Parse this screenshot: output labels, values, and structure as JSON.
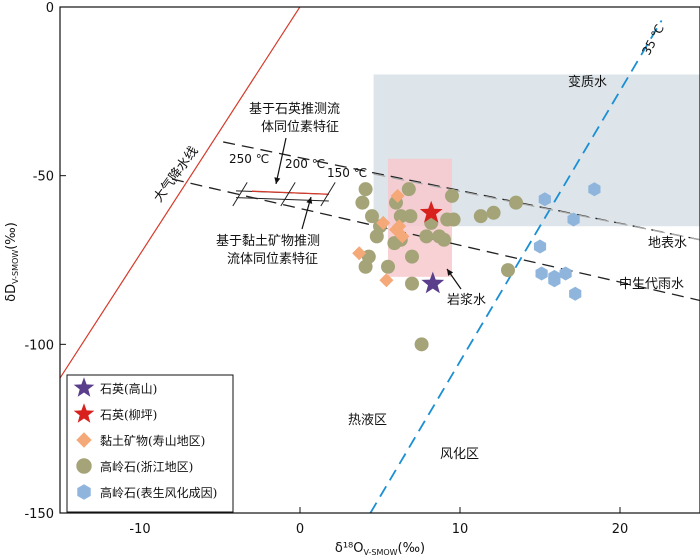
{
  "chart_data": {
    "type": "scatter",
    "xlabel": "δ¹⁸O",
    "xlabel_sub": "V-SMOW",
    "xlabel_unit": "(‰)",
    "ylabel": "δD",
    "ylabel_sub": "V-SMOW",
    "ylabel_unit": "(‰)",
    "xlim": [
      -15,
      25
    ],
    "ylim": [
      -150,
      0
    ],
    "x_ticks": [
      -10,
      0,
      10,
      20
    ],
    "y_ticks": [
      0,
      -50,
      -100,
      -150
    ],
    "series": [
      {
        "name": "石英(高山)",
        "marker": "star",
        "color": "#5a3e8c",
        "points": [
          [
            8.3,
            -82
          ]
        ]
      },
      {
        "name": "石英(柳坪)",
        "marker": "star",
        "color": "#d8201c",
        "points": [
          [
            8.2,
            -61
          ]
        ]
      },
      {
        "name": "黏土矿物(寿山地区)",
        "marker": "diamond",
        "color": "#f5a878",
        "points": [
          [
            3.7,
            -73
          ],
          [
            5.2,
            -64
          ],
          [
            5.4,
            -81
          ],
          [
            6.1,
            -56
          ],
          [
            6.0,
            -66
          ],
          [
            6.4,
            -68
          ],
          [
            6.2,
            -65
          ]
        ]
      },
      {
        "name": "高岭石(浙江地区)",
        "marker": "circle",
        "color": "#a5a479",
        "points": [
          [
            4.1,
            -54
          ],
          [
            3.9,
            -58
          ],
          [
            4.5,
            -62
          ],
          [
            4.8,
            -68
          ],
          [
            4.3,
            -74
          ],
          [
            5.5,
            -77
          ],
          [
            4.1,
            -77
          ],
          [
            5.0,
            -65
          ],
          [
            6.0,
            -58
          ],
          [
            6.3,
            -62
          ],
          [
            6.8,
            -54
          ],
          [
            6.9,
            -62
          ],
          [
            6.3,
            -69
          ],
          [
            7.0,
            -74
          ],
          [
            7.0,
            -82
          ],
          [
            7.9,
            -68
          ],
          [
            8.2,
            -64
          ],
          [
            8.7,
            -68
          ],
          [
            9.0,
            -69
          ],
          [
            9.2,
            -63
          ],
          [
            9.6,
            -63
          ],
          [
            9.5,
            -56
          ],
          [
            11.3,
            -62
          ],
          [
            12.1,
            -61
          ],
          [
            13.0,
            -78
          ],
          [
            13.5,
            -58
          ],
          [
            7.6,
            -100
          ],
          [
            5.9,
            -70
          ]
        ]
      },
      {
        "name": "高岭石(表生风化成因)",
        "marker": "hexagon",
        "color": "#8fb5dd",
        "points": [
          [
            15.3,
            -57
          ],
          [
            18.4,
            -54
          ],
          [
            17.1,
            -63
          ],
          [
            15.0,
            -71
          ],
          [
            15.1,
            -79
          ],
          [
            15.9,
            -81
          ],
          [
            16.6,
            -79
          ],
          [
            15.9,
            -80
          ],
          [
            17.2,
            -85
          ]
        ]
      }
    ],
    "fields": {
      "metamorphic_water": {
        "label": "变质水",
        "x": [
          4.6,
          25
        ],
        "y": [
          -20,
          -65
        ]
      },
      "magmatic_water": {
        "label": "岩浆水",
        "x": [
          5.5,
          9.5
        ],
        "y": [
          -45,
          -80
        ]
      }
    },
    "lines": {
      "meteoric_water_line": {
        "label": "大气降水线",
        "equation": "δD = 8δ18O + 10"
      },
      "kaolinite_line_35C": {
        "label": "35 ℃"
      },
      "surface_water": {
        "label": "地表水"
      },
      "mesozoic_rain_water": {
        "label": "中生代雨水"
      }
    },
    "temperature_labels": [
      "250 ℃",
      "200 ℃",
      "150 ℃"
    ],
    "annotations": {
      "quartz_fluid": [
        "基于石英推测流",
        "体同位素特征"
      ],
      "clay_fluid": [
        "基于黏土矿物推测",
        "流体同位素特征"
      ],
      "hydrothermal_zone": "热液区",
      "weathering_zone": "风化区"
    },
    "legend_position": "bottom-left"
  }
}
